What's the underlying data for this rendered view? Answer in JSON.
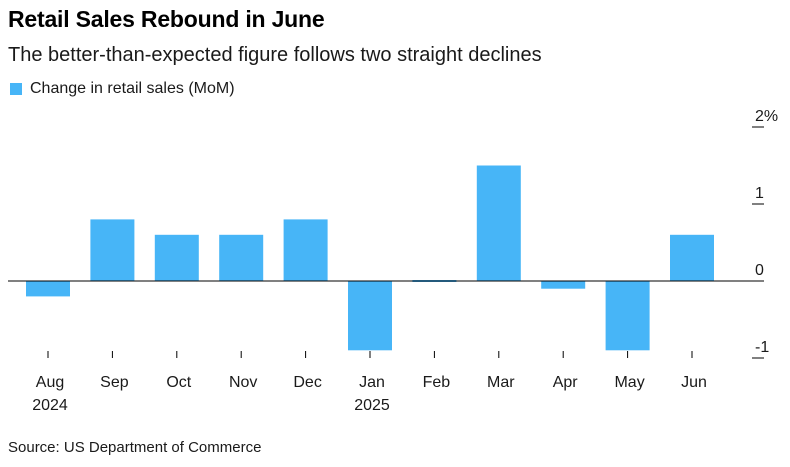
{
  "header": {
    "title": "Retail Sales Rebound in June",
    "subtitle": "The better-than-expected figure follows two straight declines"
  },
  "legend": {
    "label": "Change in retail sales (MoM)",
    "color": "#47b5f7"
  },
  "footer": {
    "source": "Source: US Department of Commerce"
  },
  "chart_data": {
    "type": "bar",
    "title": "Retail Sales Rebound in June",
    "subtitle": "The better-than-expected figure follows two straight declines",
    "xlabel": "",
    "ylabel": "",
    "categories": [
      "Aug",
      "Sep",
      "Oct",
      "Nov",
      "Dec",
      "Jan",
      "Feb",
      "Mar",
      "Apr",
      "May",
      "Jun"
    ],
    "year_labels": [
      "2024",
      "",
      "",
      "",
      "",
      "2025",
      "",
      "",
      "",
      "",
      ""
    ],
    "series": [
      {
        "name": "Change in retail sales (MoM)",
        "values": [
          -0.2,
          0.8,
          0.6,
          0.6,
          0.8,
          -0.9,
          0.0,
          1.5,
          -0.1,
          -0.9,
          0.6
        ]
      }
    ],
    "ylim": [
      -1,
      2
    ],
    "yticks": [
      2,
      1,
      0,
      -1
    ],
    "ytick_labels": [
      "2%",
      "1",
      "0",
      "-1"
    ],
    "bar_color": "#47b5f7",
    "grid": false,
    "legend_position": "top-left"
  }
}
